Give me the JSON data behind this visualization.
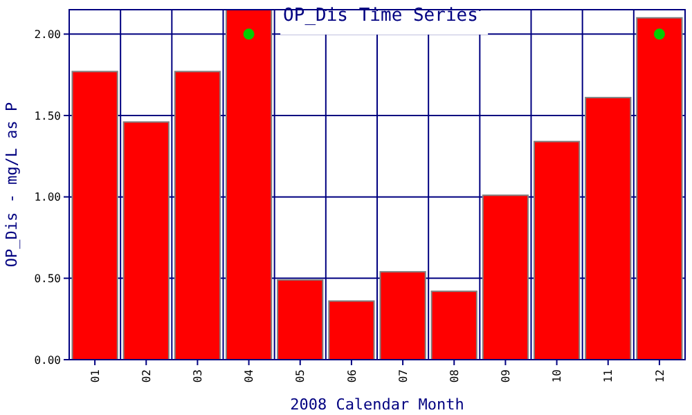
{
  "chart_data": {
    "type": "bar",
    "title": "OP_Dis Time Series",
    "xlabel": "2008 Calendar Month",
    "ylabel": "OP_Dis - mg/L as P",
    "categories": [
      "01",
      "02",
      "03",
      "04",
      "05",
      "06",
      "07",
      "08",
      "09",
      "10",
      "11",
      "12"
    ],
    "series": [
      {
        "color": "#ff0000",
        "values": [
          1.77,
          1.46,
          1.77,
          2.15,
          0.49,
          0.36,
          0.54,
          0.42,
          1.01,
          1.34,
          1.61,
          2.1
        ]
      },
      {
        "type": "scatter",
        "color": "#00cc00",
        "x": [
          "04",
          "12"
        ],
        "values": [
          2.0,
          2.0
        ],
        "marker": "circle"
      }
    ],
    "ylim": [
      0,
      2.15
    ],
    "yticks": [
      {
        "value": 0,
        "label": "0.00"
      },
      {
        "value": 0.5,
        "label": "0.50"
      },
      {
        "value": 1,
        "label": "1.00"
      },
      {
        "value": 1.5,
        "label": "1.50"
      },
      {
        "value": 2,
        "label": "2.00"
      }
    ],
    "grid": true
  }
}
